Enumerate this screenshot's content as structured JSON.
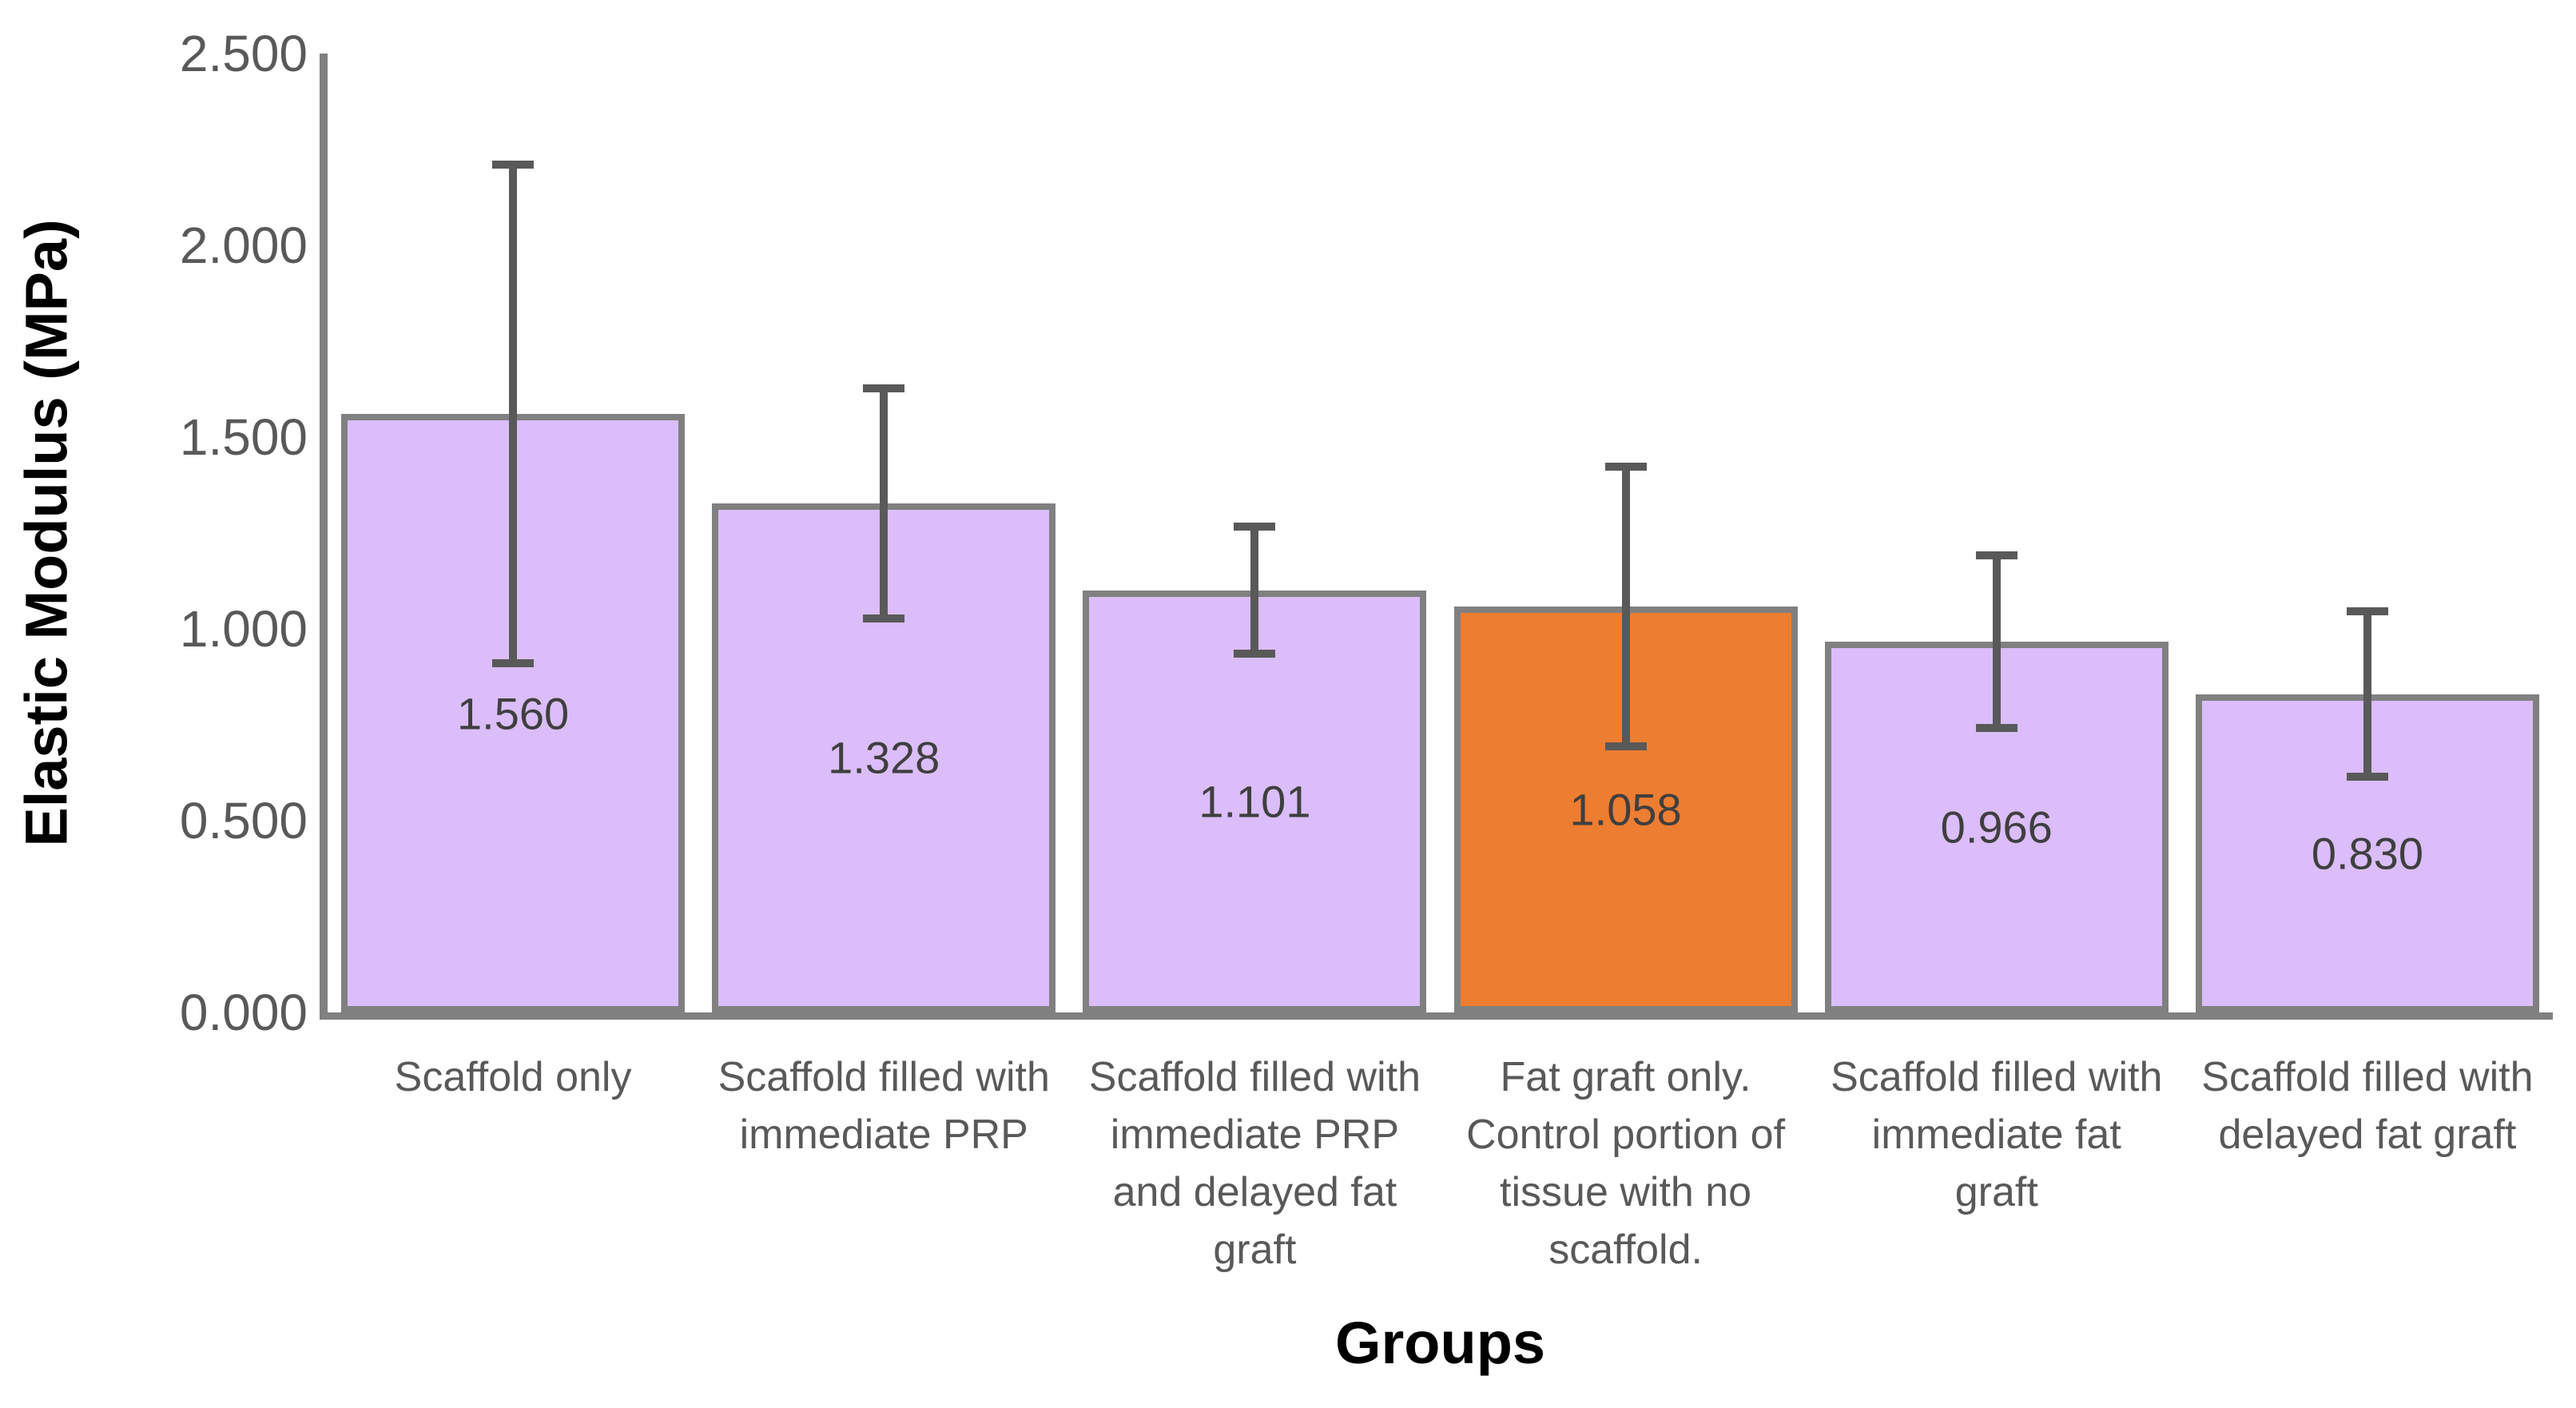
{
  "chart_data": {
    "type": "bar",
    "xlabel": "Groups",
    "ylabel": "Elastic Modulus (MPa)",
    "categories": [
      "Scaffold only",
      "Scaffold filled with immediate PRP",
      "Scaffold filled with immediate PRP and delayed fat graft",
      "Fat graft only. Control portion of tissue with no scaffold.",
      "Scaffold filled with immediate fat graft",
      "Scaffold filled with delayed fat graft"
    ],
    "category_lines": [
      [
        "Scaffold only"
      ],
      [
        "Scaffold filled with",
        "immediate PRP"
      ],
      [
        "Scaffold filled with",
        "immediate PRP",
        "and delayed fat",
        "graft"
      ],
      [
        "Fat graft only.",
        "Control portion of",
        "tissue with no",
        "scaffold."
      ],
      [
        "Scaffold filled with",
        "immediate fat",
        "graft"
      ],
      [
        "Scaffold filled with",
        "delayed fat graft"
      ]
    ],
    "values": [
      1.56,
      1.328,
      1.101,
      1.058,
      0.966,
      0.83
    ],
    "value_labels": [
      "1.560",
      "1.328",
      "1.101",
      "1.058",
      "0.966",
      "0.830"
    ],
    "errors": [
      0.65,
      0.3,
      0.165,
      0.365,
      0.225,
      0.215
    ],
    "ylim": [
      0,
      2.5
    ],
    "ytick_step": 0.5,
    "ytick_labels": [
      "0.000",
      "0.500",
      "1.000",
      "1.500",
      "2.000",
      "2.500"
    ],
    "grid": false,
    "legend": "none",
    "colors": {
      "bar_fill_default": "#dbbdf9",
      "bar_fill_highlight": "#ed7d31",
      "highlight_index": 3,
      "bar_border": "#808080",
      "error_bar": "#595959",
      "axis_line": "#808080",
      "tick_label": "#595959",
      "category_label": "#595959",
      "value_label": "#3f3f3f",
      "axis_title": "#000000",
      "background": "#ffffff"
    }
  }
}
